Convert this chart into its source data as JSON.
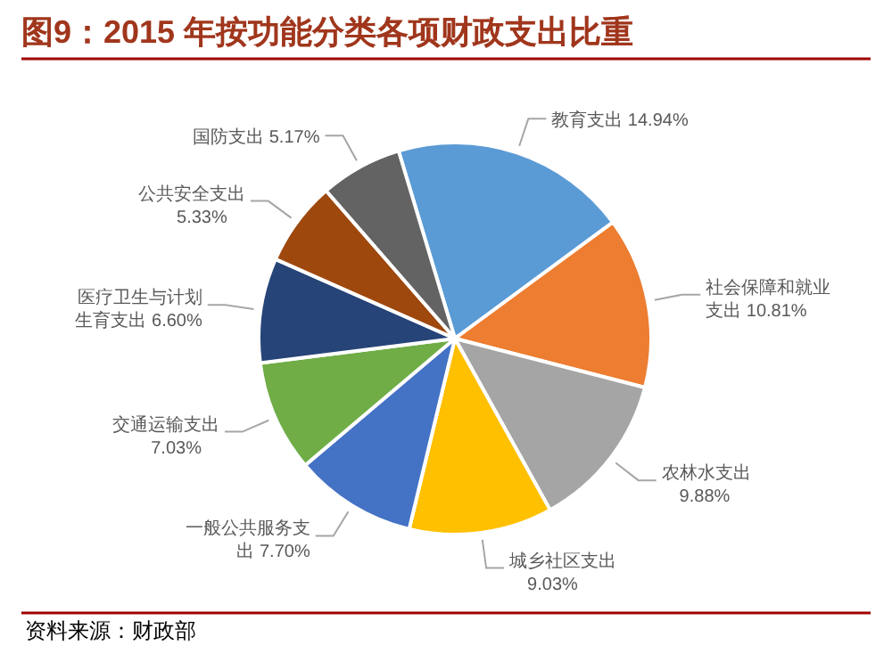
{
  "chart_data": {
    "type": "pie",
    "title": "图9：2015 年按功能分类各项财政支出比重",
    "categories": [
      "教育支出",
      "社会保障和就业支出",
      "农林水支出",
      "城乡社区支出",
      "一般公共服务支出",
      "交通运输支出",
      "医疗卫生与计划生育支出",
      "公共安全支出",
      "国防支出"
    ],
    "values": [
      14.94,
      10.81,
      9.88,
      9.03,
      7.7,
      7.03,
      6.6,
      5.33,
      5.17
    ],
    "value_labels": [
      "14.94%",
      "10.81%",
      "9.88%",
      "9.03%",
      "7.70%",
      "7.03%",
      "6.60%",
      "5.33%",
      "5.17%"
    ],
    "colors": [
      "#5b9bd5",
      "#ed7d31",
      "#a5a5a5",
      "#ffc000",
      "#4472c4",
      "#70ad47",
      "#264478",
      "#9e480e",
      "#636363"
    ],
    "annotations": [
      "资料来源：财政部"
    ]
  }
}
